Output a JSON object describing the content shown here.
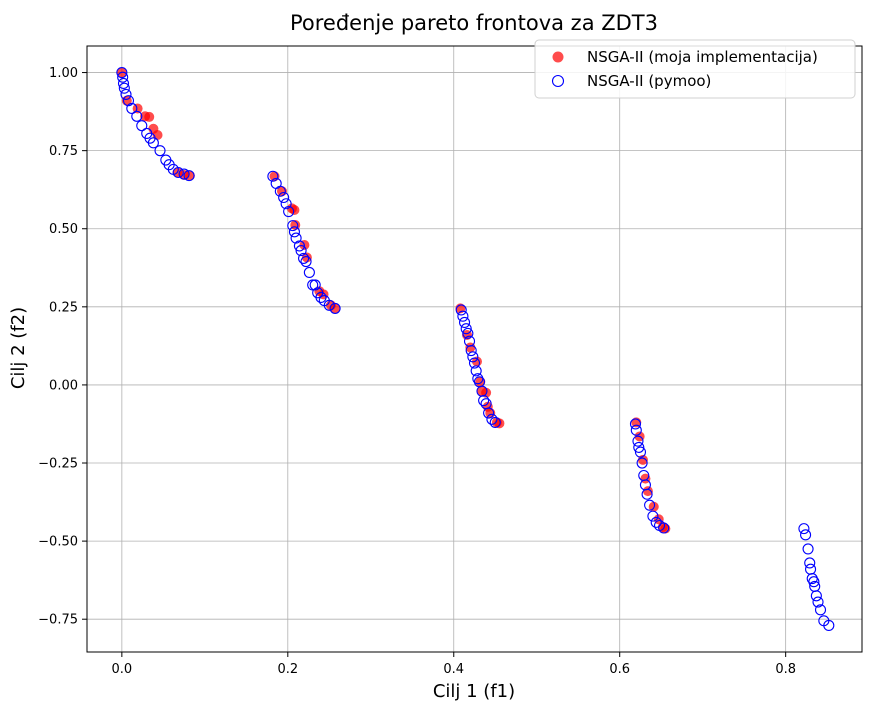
{
  "chart_data": {
    "type": "scatter",
    "title": "Poređenje pareto frontova za ZDT3",
    "xlabel": "Cilj 1 (f1)",
    "ylabel": "Cilj 2 (f2)",
    "xlim": [
      -0.042,
      0.892
    ],
    "ylim": [
      -0.855,
      1.085
    ],
    "xticks": [
      0.0,
      0.2,
      0.4,
      0.6,
      0.8
    ],
    "xtick_labels": [
      "0.0",
      "0.2",
      "0.4",
      "0.6",
      "0.8"
    ],
    "yticks": [
      1.0,
      0.75,
      0.5,
      0.25,
      0.0,
      -0.25,
      -0.5,
      -0.75
    ],
    "ytick_labels": [
      "1.00",
      "0.75",
      "0.50",
      "0.25",
      "0.00",
      "−0.25",
      "−0.50",
      "−0.75"
    ],
    "grid": true,
    "legend_position": "top-right",
    "series": [
      {
        "name": "NSGA-II (moja implementacija)",
        "marker": "filled-circle",
        "color": "#ff0000",
        "points": [
          [
            0.0,
            1.0
          ],
          [
            0.006,
            0.91
          ],
          [
            0.019,
            0.885
          ],
          [
            0.028,
            0.86
          ],
          [
            0.033,
            0.858
          ],
          [
            0.038,
            0.82
          ],
          [
            0.043,
            0.8
          ],
          [
            0.067,
            0.68
          ],
          [
            0.075,
            0.672
          ],
          [
            0.082,
            0.67
          ],
          [
            0.184,
            0.668
          ],
          [
            0.193,
            0.62
          ],
          [
            0.205,
            0.565
          ],
          [
            0.208,
            0.56
          ],
          [
            0.209,
            0.512
          ],
          [
            0.22,
            0.448
          ],
          [
            0.223,
            0.408
          ],
          [
            0.238,
            0.3
          ],
          [
            0.243,
            0.29
          ],
          [
            0.252,
            0.255
          ],
          [
            0.257,
            0.245
          ],
          [
            0.408,
            0.245
          ],
          [
            0.416,
            0.16
          ],
          [
            0.42,
            0.12
          ],
          [
            0.428,
            0.075
          ],
          [
            0.432,
            0.01
          ],
          [
            0.434,
            -0.02
          ],
          [
            0.439,
            -0.025
          ],
          [
            0.441,
            -0.07
          ],
          [
            0.444,
            -0.09
          ],
          [
            0.452,
            -0.12
          ],
          [
            0.455,
            -0.123
          ],
          [
            0.62,
            -0.12
          ],
          [
            0.624,
            -0.165
          ],
          [
            0.628,
            -0.24
          ],
          [
            0.631,
            -0.3
          ],
          [
            0.634,
            -0.34
          ],
          [
            0.641,
            -0.39
          ],
          [
            0.647,
            -0.43
          ],
          [
            0.652,
            -0.455
          ],
          [
            0.655,
            -0.46
          ]
        ]
      },
      {
        "name": "NSGA-II (pymoo)",
        "marker": "hollow-circle",
        "color": "#0000ff",
        "points": [
          [
            0.0,
            1.0
          ],
          [
            0.001,
            0.985
          ],
          [
            0.002,
            0.965
          ],
          [
            0.003,
            0.95
          ],
          [
            0.005,
            0.93
          ],
          [
            0.008,
            0.91
          ],
          [
            0.012,
            0.885
          ],
          [
            0.018,
            0.86
          ],
          [
            0.024,
            0.83
          ],
          [
            0.03,
            0.805
          ],
          [
            0.034,
            0.79
          ],
          [
            0.038,
            0.775
          ],
          [
            0.046,
            0.75
          ],
          [
            0.053,
            0.72
          ],
          [
            0.057,
            0.705
          ],
          [
            0.062,
            0.69
          ],
          [
            0.068,
            0.68
          ],
          [
            0.075,
            0.675
          ],
          [
            0.081,
            0.67
          ],
          [
            0.182,
            0.668
          ],
          [
            0.186,
            0.645
          ],
          [
            0.191,
            0.62
          ],
          [
            0.195,
            0.6
          ],
          [
            0.198,
            0.58
          ],
          [
            0.201,
            0.555
          ],
          [
            0.206,
            0.51
          ],
          [
            0.208,
            0.49
          ],
          [
            0.21,
            0.47
          ],
          [
            0.214,
            0.445
          ],
          [
            0.216,
            0.43
          ],
          [
            0.219,
            0.405
          ],
          [
            0.222,
            0.395
          ],
          [
            0.226,
            0.36
          ],
          [
            0.23,
            0.32
          ],
          [
            0.233,
            0.32
          ],
          [
            0.236,
            0.295
          ],
          [
            0.24,
            0.28
          ],
          [
            0.244,
            0.27
          ],
          [
            0.25,
            0.255
          ],
          [
            0.257,
            0.245
          ],
          [
            0.409,
            0.24
          ],
          [
            0.411,
            0.22
          ],
          [
            0.413,
            0.2
          ],
          [
            0.415,
            0.18
          ],
          [
            0.417,
            0.165
          ],
          [
            0.419,
            0.14
          ],
          [
            0.421,
            0.11
          ],
          [
            0.423,
            0.09
          ],
          [
            0.425,
            0.07
          ],
          [
            0.427,
            0.045
          ],
          [
            0.429,
            0.02
          ],
          [
            0.431,
            0.01
          ],
          [
            0.434,
            -0.02
          ],
          [
            0.436,
            -0.05
          ],
          [
            0.439,
            -0.06
          ],
          [
            0.442,
            -0.09
          ],
          [
            0.446,
            -0.11
          ],
          [
            0.45,
            -0.12
          ],
          [
            0.619,
            -0.125
          ],
          [
            0.62,
            -0.145
          ],
          [
            0.622,
            -0.18
          ],
          [
            0.623,
            -0.2
          ],
          [
            0.625,
            -0.215
          ],
          [
            0.627,
            -0.25
          ],
          [
            0.629,
            -0.29
          ],
          [
            0.631,
            -0.32
          ],
          [
            0.633,
            -0.35
          ],
          [
            0.636,
            -0.385
          ],
          [
            0.64,
            -0.42
          ],
          [
            0.644,
            -0.44
          ],
          [
            0.648,
            -0.45
          ],
          [
            0.653,
            -0.458
          ],
          [
            0.822,
            -0.46
          ],
          [
            0.824,
            -0.48
          ],
          [
            0.827,
            -0.525
          ],
          [
            0.829,
            -0.57
          ],
          [
            0.83,
            -0.59
          ],
          [
            0.832,
            -0.62
          ],
          [
            0.834,
            -0.63
          ],
          [
            0.835,
            -0.645
          ],
          [
            0.837,
            -0.675
          ],
          [
            0.839,
            -0.695
          ],
          [
            0.842,
            -0.72
          ],
          [
            0.846,
            -0.755
          ],
          [
            0.852,
            -0.77
          ]
        ]
      }
    ]
  }
}
